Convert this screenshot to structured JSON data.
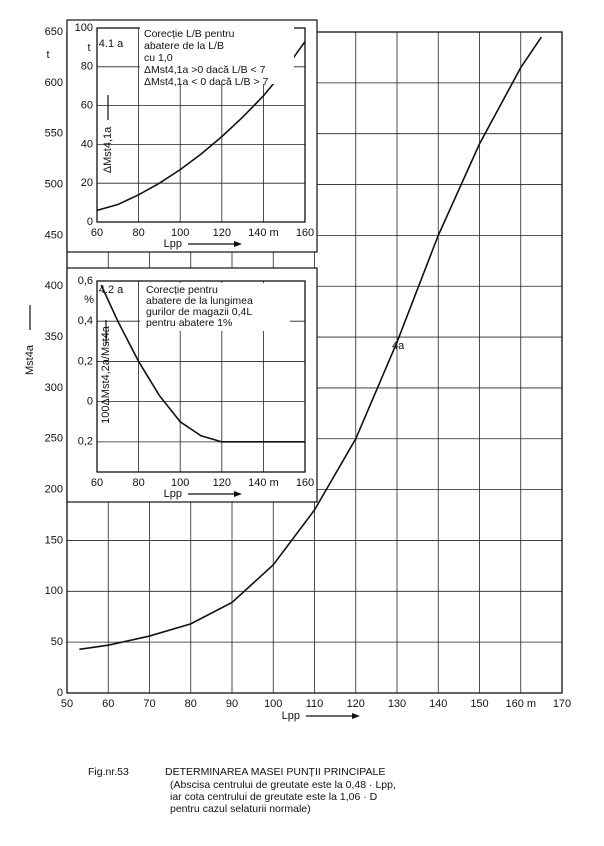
{
  "chart_data": [
    {
      "type": "line",
      "ylabel": "Mst4a",
      "xlabel": "Lpp",
      "y_unit": "t",
      "curve_label": "4a",
      "xlim": [
        50,
        170
      ],
      "xticks": [
        50,
        60,
        70,
        80,
        90,
        100,
        110,
        120,
        130,
        140,
        150,
        {
          "value": 160,
          "label": "160 m"
        },
        170
      ],
      "ylim": [
        0,
        650
      ],
      "yticks": [
        0,
        50,
        100,
        150,
        200,
        250,
        300,
        350,
        400,
        450,
        500,
        550,
        600,
        650
      ],
      "grid": true,
      "color": "#111111",
      "series": [
        {
          "x": [
            53,
            60,
            70,
            80,
            90,
            100,
            110,
            120,
            130,
            140,
            150,
            160,
            165
          ],
          "values": [
            43,
            47,
            56,
            68,
            89,
            126,
            180,
            250,
            345,
            450,
            540,
            615,
            645
          ]
        }
      ]
    },
    {
      "type": "line",
      "label": "4.1 a",
      "ylabel": "ΔMst4,1a",
      "xlabel": "Lpp",
      "y_unit": "t",
      "notes": [
        "Corecție L/B pentru",
        "abatere de la L/B",
        "cu 1,0",
        "ΔMst4,1a >0 dacă L/B < 7",
        "ΔMst4,1a < 0 dacă L/B > 7"
      ],
      "xlim": [
        60,
        160
      ],
      "xticks": [
        60,
        80,
        100,
        120,
        {
          "value": 140,
          "label": "140 m"
        },
        160
      ],
      "ylim": [
        0,
        100
      ],
      "yticks": [
        0,
        20,
        40,
        60,
        80,
        100
      ],
      "grid": true,
      "color": "#111111",
      "series": [
        {
          "x": [
            60,
            70,
            80,
            90,
            100,
            110,
            120,
            130,
            140,
            150,
            160
          ],
          "values": [
            6,
            9,
            14,
            20,
            27,
            35,
            44,
            54,
            65,
            78,
            93
          ]
        }
      ]
    },
    {
      "type": "line",
      "label": "4.2 a",
      "ylabel": "100ΔMst4,2a/Mst4a",
      "xlabel": "Lpp",
      "y_unit": "%",
      "notes": [
        "Corecție pentru",
        "abatere de la lungimea",
        "gurilor de magazii 0,4L",
        "pentru abatere 1%"
      ],
      "xlim": [
        60,
        160
      ],
      "xticks": [
        60,
        80,
        100,
        120,
        {
          "value": 140,
          "label": "140 m"
        },
        160
      ],
      "ylim": [
        -0.35,
        0.6
      ],
      "yticks": [
        {
          "value": -0.2,
          "label": "0,2"
        },
        0,
        {
          "value": 0.2,
          "label": "0,2"
        },
        {
          "value": 0.4,
          "label": "0,4"
        },
        {
          "value": 0.6,
          "label": "0,6"
        }
      ],
      "grid": true,
      "color": "#111111",
      "series": [
        {
          "x": [
            62,
            70,
            80,
            90,
            100,
            110,
            120,
            130,
            140,
            150,
            160
          ],
          "values": [
            0.58,
            0.4,
            0.2,
            0.03,
            -0.1,
            -0.17,
            -0.2,
            -0.2,
            -0.2,
            -0.2,
            -0.2
          ]
        }
      ]
    }
  ],
  "caption": {
    "number": "Fig.nr.53",
    "title": "DETERMINAREA MASEI PUNȚII PRINCIPALE",
    "lines": [
      "(Abscisa centrului de greutate este la 0,48 · Lpp,",
      "iar cota centrului de greutate este la 1,06 · D",
      "pentru cazul selaturii normale)"
    ]
  }
}
